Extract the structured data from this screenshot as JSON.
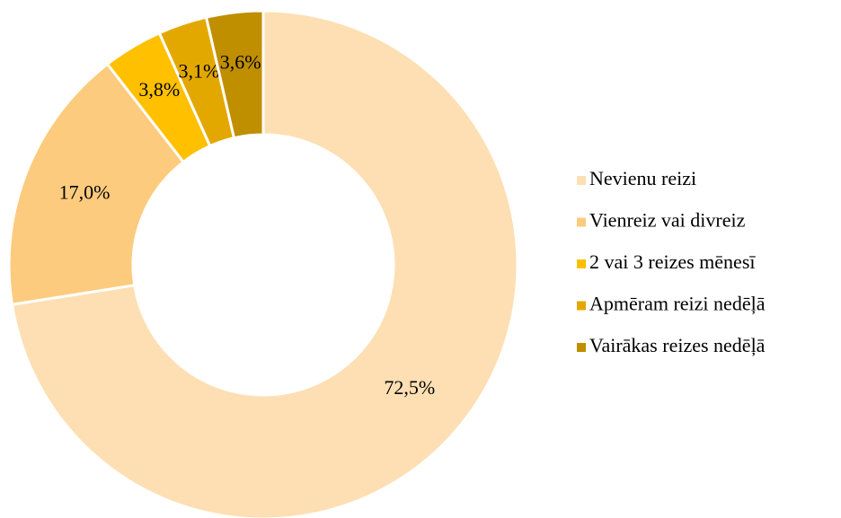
{
  "chart_data": {
    "type": "donut",
    "categories": [
      "Nevienu reizi",
      "Vienreiz vai divreiz",
      "2 vai 3 reizes mēnesī",
      "Apmēram reizi nedēļā",
      "Vairākas reizes nedēļā"
    ],
    "values": [
      72.5,
      17.0,
      3.8,
      3.1,
      3.6
    ],
    "value_labels": [
      "72,5%",
      "17,0%",
      "3,8%",
      "3,1%",
      "3,6%"
    ],
    "colors": [
      "#fddfb3",
      "#fdcb7e",
      "#ffc000",
      "#e3a800",
      "#c08f00"
    ],
    "legend": "right"
  }
}
